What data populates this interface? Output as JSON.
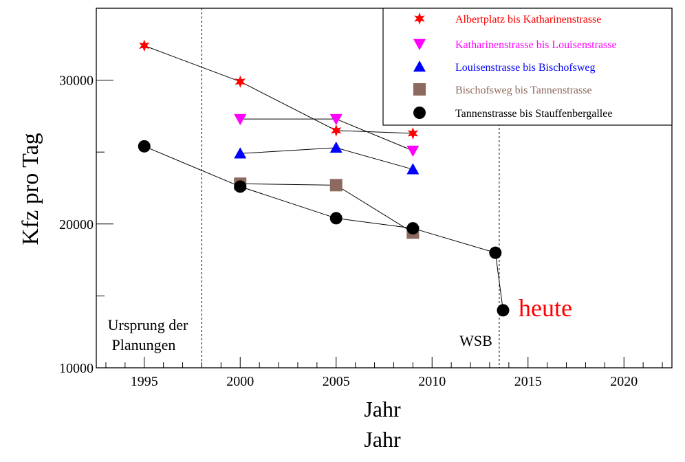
{
  "chart_data": {
    "type": "line",
    "title": "",
    "xlabel": "Jahr",
    "ylabel": "Kfz pro Tag",
    "xlim": [
      1992.5,
      2022.5
    ],
    "ylim": [
      10000,
      35000
    ],
    "x_ticks": [
      "1995",
      "2000",
      "2005",
      "2010",
      "2015",
      "2020"
    ],
    "y_ticks": [
      "10000",
      "20000",
      "30000"
    ],
    "grid": false,
    "legend_position": "top-right",
    "series": [
      {
        "name": "Albertplatz bis Katharinenstrasse",
        "color": "#ff0000",
        "marker": "star",
        "points": [
          [
            1995,
            32400
          ],
          [
            2000,
            29900
          ],
          [
            2005,
            26500
          ],
          [
            2009,
            26300
          ]
        ]
      },
      {
        "name": "Katharinenstrasse bis Louisenstrasse",
        "color": "#ff00ff",
        "marker": "triangle-down",
        "points": [
          [
            2000,
            27300
          ],
          [
            2005,
            27300
          ],
          [
            2009,
            25100
          ]
        ]
      },
      {
        "name": "Louisenstrasse bis Bischofsweg",
        "color": "#0000ff",
        "marker": "triangle-up",
        "points": [
          [
            2000,
            24900
          ],
          [
            2005,
            25300
          ],
          [
            2009,
            23800
          ]
        ]
      },
      {
        "name": "Bischofsweg bis Tannenstrasse",
        "color": "#8c6a5e",
        "marker": "square",
        "points": [
          [
            2000,
            22800
          ],
          [
            2005,
            22700
          ],
          [
            2009,
            19400
          ]
        ]
      },
      {
        "name": "Tannenstrasse bis Stauffenbergallee",
        "color": "#000000",
        "marker": "circle",
        "points": [
          [
            1995,
            25400
          ],
          [
            2000,
            22600
          ],
          [
            2005,
            20400
          ],
          [
            2009,
            19700
          ],
          [
            2013.3,
            18000
          ],
          [
            2013.7,
            14000
          ]
        ]
      }
    ],
    "vlines": [
      1998,
      2013.5
    ],
    "annotations": [
      {
        "text": "Ursprung der",
        "color": "#000000"
      },
      {
        "text": "Planungen",
        "color": "#000000"
      },
      {
        "text": "WSB",
        "color": "#000000"
      },
      {
        "text": "heute",
        "color": "#ff0000"
      }
    ]
  }
}
